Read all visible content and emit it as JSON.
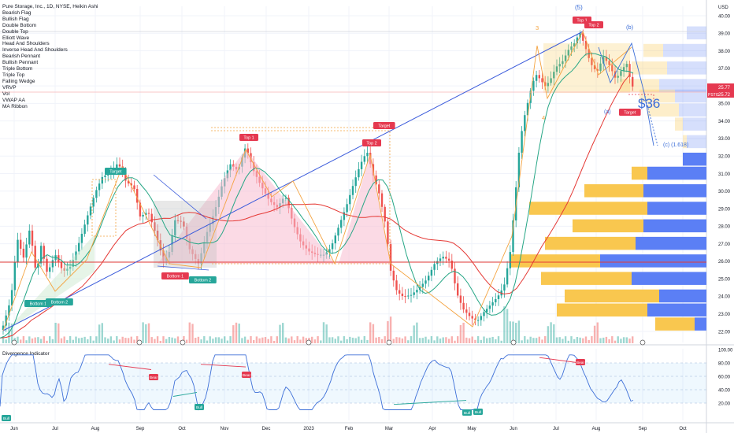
{
  "header": {
    "title": "Pure Storage, Inc., 1D, NYSE, Heikin Ashi",
    "currency": "USD"
  },
  "legend_items": [
    "Bearish Flag",
    "Bullish Flag",
    "Double Bottom",
    "Double Top",
    "Elliott Wave",
    "Head And Shoulders",
    "Inverse Head And Shoulders",
    "Bearish Pennant",
    "Bullish Pennant",
    "Triple Bottom",
    "Triple Top",
    "Falling Wedge",
    "VRVP",
    "Vol",
    "VWAP AA",
    "MA Ribbon"
  ],
  "colors": {
    "up": "#26a69a",
    "down": "#ef5350",
    "ma_green": "#26a685",
    "ma_red": "#e53935",
    "trend_blue": "#3b5bdb",
    "pattern_orange": "#f4a340",
    "hs_pink": "#f8bbd0",
    "vp_blue": "#5b7ff5",
    "vp_yellow": "#f9c74f",
    "osc_blue": "#3d6fd8",
    "bear_label": "#e53950",
    "bull_label": "#26a69a"
  },
  "price_axis": {
    "min": 21.0,
    "max": 40.0,
    "ticks": [
      "40.00",
      "39.00",
      "38.00",
      "37.00",
      "36.00",
      "35.00",
      "34.00",
      "33.00",
      "32.00",
      "31.00",
      "30.00",
      "29.00",
      "28.00",
      "27.00",
      "26.00",
      "25.00",
      "24.00",
      "23.00",
      "22.00"
    ]
  },
  "osc_axis": {
    "min": 0,
    "max": 100,
    "ticks": [
      "100.00",
      "80.00",
      "60.00",
      "40.00",
      "20.00"
    ]
  },
  "last_price": {
    "value": "25.77",
    "label": "25.77"
  },
  "ticker_tag": {
    "symbol": "PSTG",
    "value": "25.72"
  },
  "time_axis": [
    "Jun",
    "Jul",
    "Aug",
    "Sep",
    "Oct",
    "Nov",
    "Dec",
    "2023",
    "Feb",
    "Mar",
    "Apr",
    "May",
    "Jun",
    "Jul",
    "Aug",
    "Sep",
    "Oct"
  ],
  "labels": {
    "target_bull": "Target",
    "target_bear": "Target",
    "top1_a": "Top 1",
    "top2_a": "Top 2",
    "top1_b": "Top 1",
    "top2_b": "Top 2",
    "bottom1_a": "Bottom 1",
    "bottom2_a": "Bottom 2",
    "bottom1_b": "Bottom 1",
    "bottom2_b": "Bottom 2",
    "target_low": "Target",
    "wave5": "(5)",
    "wave3": "3",
    "wave4": "4",
    "wave_b": "(b)",
    "wave_a": "(a)",
    "wave_c": "(c) (1.618)",
    "price_target": "$36"
  },
  "oscillator": {
    "title": "Divergence Indicator",
    "bear": "Bear",
    "bull": "Bull"
  },
  "chart_data": {
    "type": "candlestick",
    "title": "Pure Storage, Inc., 1D, NYSE, Heikin Ashi",
    "x_range": [
      "Jun",
      "Oct"
    ],
    "ylim": [
      21,
      40
    ],
    "key_points": [
      {
        "period": "Jun",
        "price": 22.3
      },
      {
        "period": "Aug",
        "price": 31.5
      },
      {
        "period": "Sep",
        "price": 26.0
      },
      {
        "period": "Nov",
        "price": 32.6
      },
      {
        "period": "Dec",
        "price": 29.3
      },
      {
        "period": "Feb",
        "price": 32.3
      },
      {
        "period": "Mar",
        "price": 24.0
      },
      {
        "period": "Apr",
        "price": 26.3
      },
      {
        "period": "May",
        "price": 22.5
      },
      {
        "period": "Jun",
        "price": 28.3
      },
      {
        "period": "Jul",
        "price": 39.0
      },
      {
        "period": "Aug",
        "price": 36.8
      },
      {
        "period": "Aug",
        "price": 35.7
      }
    ],
    "oscillator_series": {
      "name": "Divergence Indicator",
      "ylim": [
        0,
        100
      ]
    },
    "grid": true
  }
}
